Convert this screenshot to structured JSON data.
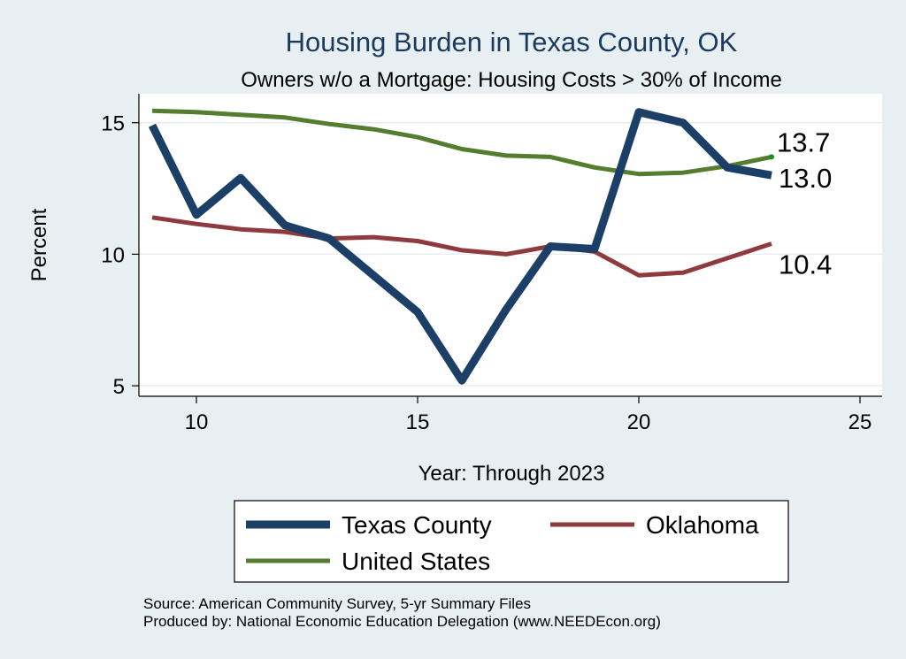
{
  "chart_data": {
    "type": "line",
    "title": "Housing Burden in Texas County, OK",
    "subtitle": "Owners w/o a Mortgage: Housing Costs > 30% of Income",
    "xlabel": "Year: Through 2023",
    "ylabel": "Percent",
    "xlim": [
      8.7,
      25.5
    ],
    "ylim": [
      4.6,
      16.1
    ],
    "xticks": [
      10,
      15,
      20,
      25
    ],
    "yticks": [
      5,
      10,
      15
    ],
    "grid": "horizontal",
    "legend_position": "bottom",
    "series": [
      {
        "name": "Texas County",
        "color": "#1b3f66",
        "width": 9,
        "x": [
          9,
          10,
          11,
          12,
          13,
          14,
          15,
          16,
          17,
          18,
          19,
          20,
          21,
          22,
          23
        ],
        "values": [
          14.9,
          11.5,
          12.9,
          11.1,
          10.6,
          9.2,
          7.8,
          5.2,
          7.9,
          10.3,
          10.2,
          15.4,
          15.0,
          13.3,
          13.0
        ],
        "end_label": "13.0"
      },
      {
        "name": "Oklahoma",
        "color": "#8f3a3c",
        "width": 5,
        "x": [
          9,
          10,
          11,
          12,
          13,
          14,
          15,
          16,
          17,
          18,
          19,
          20,
          21,
          22,
          23
        ],
        "values": [
          11.4,
          11.15,
          10.95,
          10.85,
          10.6,
          10.65,
          10.5,
          10.15,
          10.0,
          10.3,
          10.1,
          9.2,
          9.3,
          9.85,
          10.4
        ],
        "end_label": "10.4"
      },
      {
        "name": "United States",
        "color": "#547d2f",
        "width": 5,
        "x": [
          9,
          10,
          11,
          12,
          13,
          14,
          15,
          16,
          17,
          18,
          19,
          20,
          21,
          22,
          23
        ],
        "values": [
          15.45,
          15.4,
          15.3,
          15.2,
          14.95,
          14.75,
          14.45,
          14.0,
          13.75,
          13.7,
          13.3,
          13.05,
          13.1,
          13.35,
          13.7
        ],
        "end_label": "13.7"
      }
    ]
  },
  "notes": {
    "source": "Source: American Community Survey, 5-yr Summary Files",
    "produced": "Produced by: National Economic Education Delegation (www.NEEDEcon.org)"
  }
}
